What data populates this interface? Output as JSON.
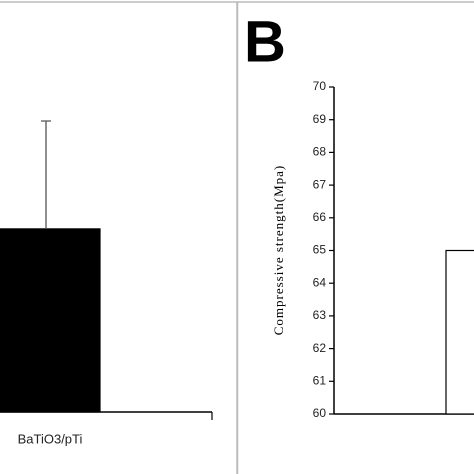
{
  "chart_data": [
    {
      "type": "bar",
      "categories": [
        "BaTiO3/pTi"
      ],
      "values": [
        65.6
      ],
      "errors": [
        3.3
      ],
      "color": "#000000",
      "ylim": [
        60,
        70
      ]
    },
    {
      "type": "bar",
      "panel_label": "B",
      "y_label": "Compressive strength(Mpa)",
      "categories": [
        null
      ],
      "values": [
        65
      ],
      "color": "#ffffff",
      "ylim": [
        60,
        70
      ],
      "yticks": [
        60,
        61,
        62,
        63,
        64,
        65,
        66,
        67,
        68,
        69,
        70
      ]
    }
  ]
}
